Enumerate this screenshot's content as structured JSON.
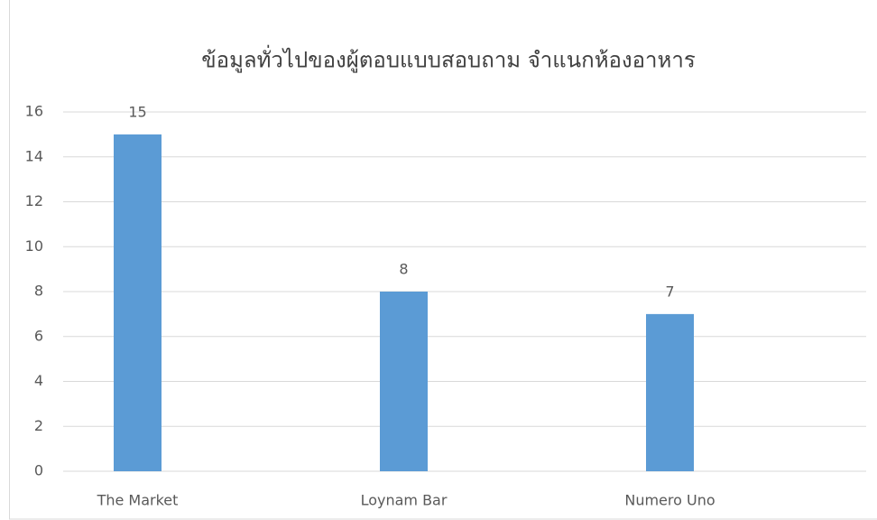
{
  "chart_data": {
    "type": "bar",
    "title": "ข้อมูลทั่วไปของผู้ตอบแบบสอบถาม จำแนกห้องอาหาร",
    "categories": [
      "The Market",
      "Loynam Bar",
      "Numero Uno"
    ],
    "values": [
      15,
      8,
      7
    ],
    "color": "#5b9bd5",
    "ylim": [
      0,
      16
    ],
    "yticks": [
      0,
      2,
      4,
      6,
      8,
      10,
      12,
      14,
      16
    ],
    "grid": true
  }
}
